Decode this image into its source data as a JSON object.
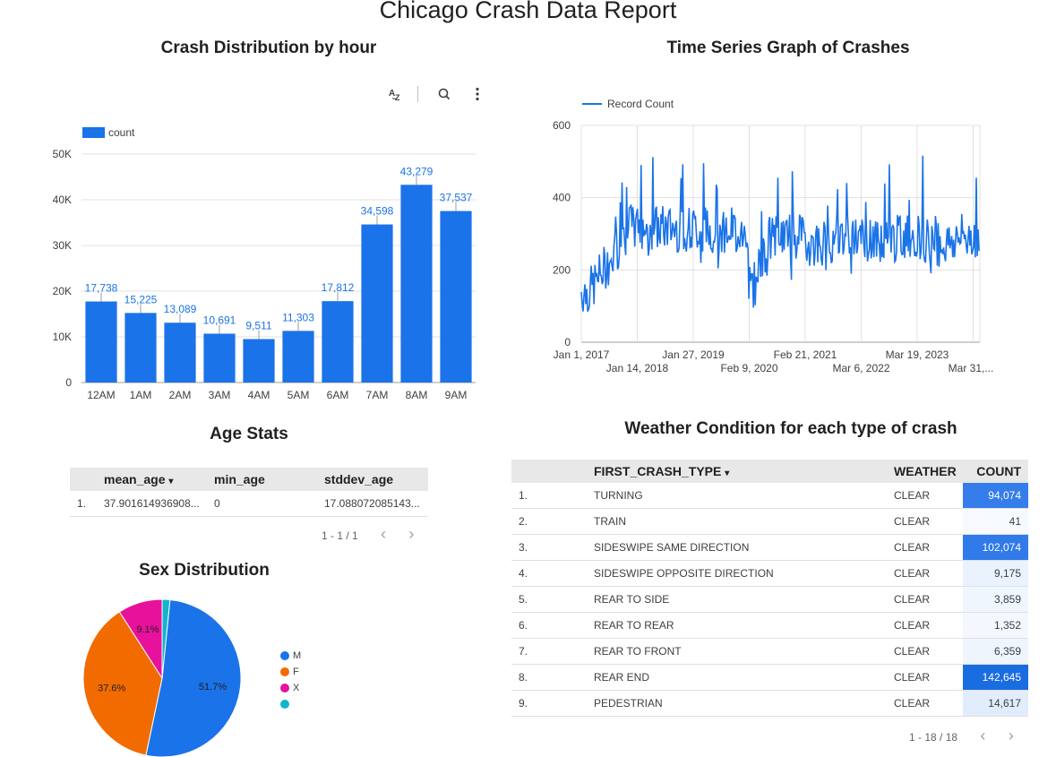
{
  "report": {
    "title": "Chicago Crash Data Report"
  },
  "hour_chart": {
    "title": "Crash Distribution by hour",
    "toolbar": {
      "sort_icon": "sort-az-icon",
      "zoom_icon": "zoom-icon",
      "more_icon": "more-vert-icon"
    },
    "legend": "count",
    "color": "#1a73e8"
  },
  "timeseries_chart": {
    "title": "Time Series Graph of Crashes",
    "legend": "Record Count",
    "color": "#1a73e8"
  },
  "age_stats": {
    "title": "Age Stats",
    "columns": [
      "mean_age",
      "min_age",
      "stddev_age"
    ],
    "sort_indicator": "▾",
    "rows": [
      {
        "index": "1.",
        "mean_age": "37.901614936908...",
        "min_age": "0",
        "stddev_age": "17.088072085143..."
      }
    ],
    "pager": "1 - 1 / 1"
  },
  "sex_distribution": {
    "title": "Sex Distribution",
    "legend": [
      {
        "label": "M",
        "color": "#1a73e8"
      },
      {
        "label": "F",
        "color": "#f26b00"
      },
      {
        "label": "X",
        "color": "#e8119b"
      },
      {
        "label": "",
        "color": "#12b5cb"
      }
    ]
  },
  "weather_table": {
    "title": "Weather Condition for each type of crash",
    "columns": {
      "crash_type": "FIRST_CRASH_TYPE",
      "weather": "WEATHER",
      "count": "COUNT"
    },
    "sort_indicator": "▾",
    "rows": [
      {
        "index": "1.",
        "crash_type": "TURNING",
        "weather": "CLEAR",
        "count": "94,074",
        "shade": 0.66
      },
      {
        "index": "2.",
        "crash_type": "TRAIN",
        "weather": "CLEAR",
        "count": "41",
        "shade": 0.0
      },
      {
        "index": "3.",
        "crash_type": "SIDESWIPE SAME DIRECTION",
        "weather": "CLEAR",
        "count": "102,074",
        "shade": 0.72
      },
      {
        "index": "4.",
        "crash_type": "SIDESWIPE OPPOSITE DIRECTION",
        "weather": "CLEAR",
        "count": "9,175",
        "shade": 0.06
      },
      {
        "index": "5.",
        "crash_type": "REAR TO SIDE",
        "weather": "CLEAR",
        "count": "3,859",
        "shade": 0.03
      },
      {
        "index": "6.",
        "crash_type": "REAR TO REAR",
        "weather": "CLEAR",
        "count": "1,352",
        "shade": 0.01
      },
      {
        "index": "7.",
        "crash_type": "REAR TO FRONT",
        "weather": "CLEAR",
        "count": "6,359",
        "shade": 0.04
      },
      {
        "index": "8.",
        "crash_type": "REAR END",
        "weather": "CLEAR",
        "count": "142,645",
        "shade": 1.0
      },
      {
        "index": "9.",
        "crash_type": "PEDESTRIAN",
        "weather": "CLEAR",
        "count": "14,617",
        "shade": 0.1
      }
    ],
    "pager": "1 - 18 / 18"
  },
  "chart_data": [
    {
      "type": "bar",
      "title": "Crash Distribution by hour",
      "categories": [
        "12AM",
        "1AM",
        "2AM",
        "3AM",
        "4AM",
        "5AM",
        "6AM",
        "7AM",
        "8AM",
        "9AM"
      ],
      "series": [
        {
          "name": "count",
          "values": [
            17738,
            15225,
            13089,
            10691,
            9511,
            11303,
            17812,
            34598,
            43279,
            37537
          ]
        }
      ],
      "value_labels": [
        "17,738",
        "15,225",
        "13,089",
        "10,691",
        "9,511",
        "11,303",
        "17,812",
        "34,598",
        "43,279",
        "37,537"
      ],
      "yticks": [
        "0",
        "10K",
        "20K",
        "30K",
        "40K",
        "50K"
      ],
      "ylim": [
        0,
        50000
      ],
      "grid": true,
      "legend": "top-left"
    },
    {
      "type": "line",
      "title": "Time Series Graph of Crashes",
      "series": [
        {
          "name": "Record Count"
        }
      ],
      "xticks_top": [
        "Jan 1, 2017",
        "Jan 27, 2019",
        "Feb 21, 2021",
        "Mar 19, 2023"
      ],
      "xticks_bottom": [
        "Jan 14, 2018",
        "Feb 9, 2020",
        "Mar 6, 2022",
        "Mar 31,..."
      ],
      "yticks": [
        "0",
        "200",
        "400",
        "600"
      ],
      "ylim": [
        0,
        600
      ],
      "grid": true,
      "legend": "top-left"
    },
    {
      "type": "pie",
      "title": "Sex Distribution",
      "labels": [
        "M",
        "F",
        "X",
        ""
      ],
      "values": [
        51.7,
        37.6,
        9.1,
        1.6
      ],
      "value_labels": [
        "51.7%",
        "37.6%",
        "9.1%",
        ""
      ],
      "legend": "right"
    }
  ]
}
